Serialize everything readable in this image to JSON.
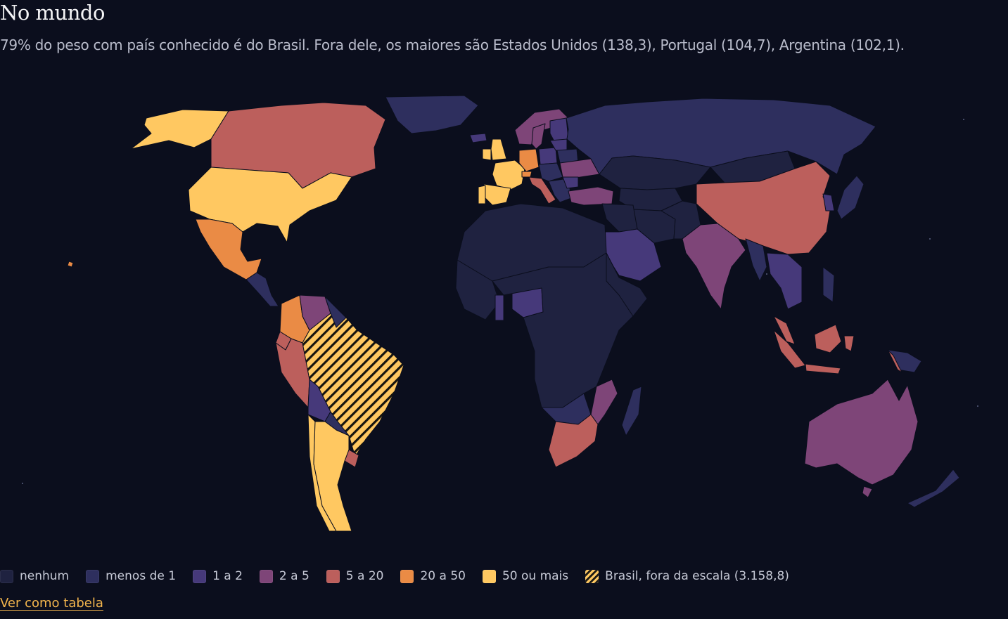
{
  "title": "No mundo",
  "subtitle": "79% do peso com país conhecido é do Brasil. Fora dele, os maiores são Estados Unidos (138,3), Portugal (104,7), Argentina (102,1).",
  "colors": {
    "background": "#0b0e1d",
    "nenhum": "#1f2240",
    "menos_de_1": "#2e2f5e",
    "1a2": "#46397a",
    "2a5": "#7e4578",
    "5a20": "#bc5f5c",
    "20a50": "#ea8b45",
    "50_ou_mais": "#ffc861",
    "brasil_hatch": "#ffc861"
  },
  "legend": [
    {
      "label": "nenhum",
      "color": "#1f2240"
    },
    {
      "label": "menos de 1",
      "color": "#2e2f5e"
    },
    {
      "label": "1 a 2",
      "color": "#46397a"
    },
    {
      "label": "2 a 5",
      "color": "#7e4578"
    },
    {
      "label": "5 a 20",
      "color": "#bc5f5c"
    },
    {
      "label": "20 a 50",
      "color": "#ea8b45"
    },
    {
      "label": "50 ou mais",
      "color": "#ffc861"
    },
    {
      "label": "Brasil, fora da escala (3.158,8)",
      "color": "hatch"
    }
  ],
  "link": {
    "label": "Ver como tabela"
  },
  "chart_data": {
    "type": "choropleth",
    "countries": [
      {
        "name": "Brasil",
        "value": 3158.8,
        "category": "fora da escala"
      },
      {
        "name": "Estados Unidos",
        "value": 138.3,
        "category": "50 ou mais"
      },
      {
        "name": "Portugal",
        "value": 104.7,
        "category": "50 ou mais"
      },
      {
        "name": "Argentina",
        "value": 102.1,
        "category": "50 ou mais"
      }
    ]
  }
}
